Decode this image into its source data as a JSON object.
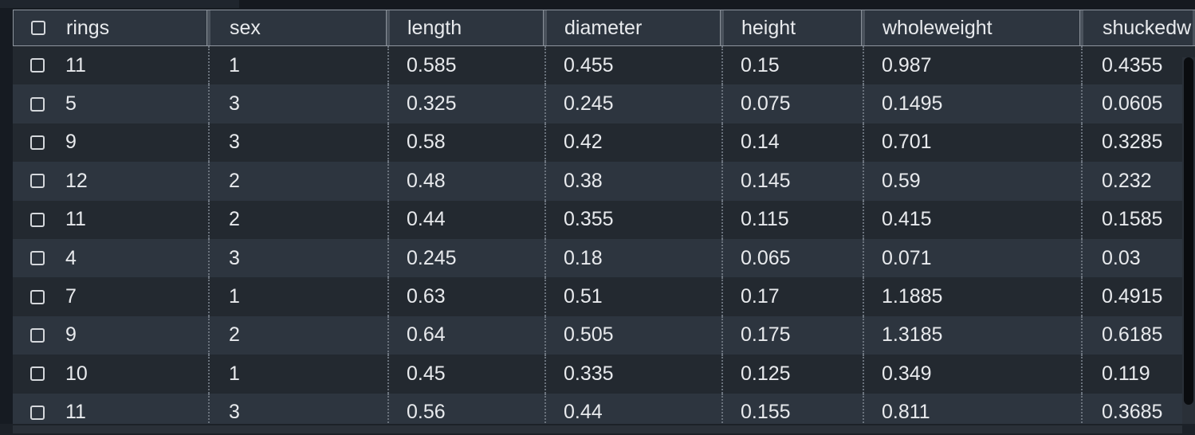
{
  "table": {
    "columns": [
      "rings",
      "sex",
      "length",
      "diameter",
      "height",
      "wholeweight",
      "shuckedw"
    ],
    "rows": [
      [
        "11",
        "1",
        "0.585",
        "0.455",
        "0.15",
        "0.987",
        "0.4355"
      ],
      [
        "5",
        "3",
        "0.325",
        "0.245",
        "0.075",
        "0.1495",
        "0.0605"
      ],
      [
        "9",
        "3",
        "0.58",
        "0.42",
        "0.14",
        "0.701",
        "0.3285"
      ],
      [
        "12",
        "2",
        "0.48",
        "0.38",
        "0.145",
        "0.59",
        "0.232"
      ],
      [
        "11",
        "2",
        "0.44",
        "0.355",
        "0.115",
        "0.415",
        "0.1585"
      ],
      [
        "4",
        "3",
        "0.245",
        "0.18",
        "0.065",
        "0.071",
        "0.03"
      ],
      [
        "7",
        "1",
        "0.63",
        "0.51",
        "0.17",
        "1.1885",
        "0.4915"
      ],
      [
        "9",
        "2",
        "0.64",
        "0.505",
        "0.175",
        "1.3185",
        "0.6185"
      ],
      [
        "10",
        "1",
        "0.45",
        "0.335",
        "0.125",
        "0.349",
        "0.119"
      ],
      [
        "11",
        "3",
        "0.56",
        "0.44",
        "0.155",
        "0.811",
        "0.3685"
      ]
    ]
  },
  "colors": {
    "header_bg": "#2d353f",
    "row_odd_bg": "#232930",
    "row_even_bg": "#2d353f",
    "text": "#e8eaed"
  }
}
